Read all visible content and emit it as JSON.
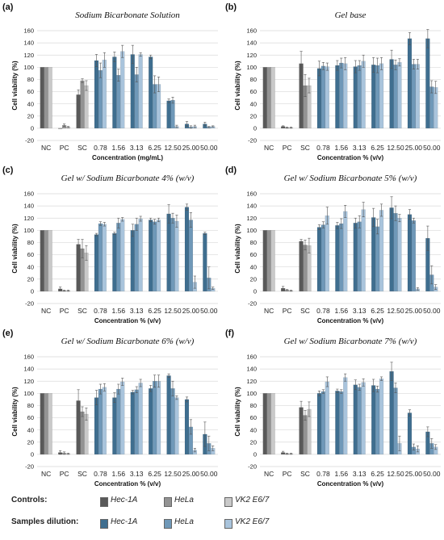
{
  "chart_data": [
    {
      "type": "bar",
      "panel_label": "(a)",
      "title": "Sodium Bicarbonate Solution",
      "xlabel": "Concentration (mg/mL)",
      "ylabel": "Cell viability (%)",
      "ylim": [
        -20,
        160
      ],
      "yticks": [
        -20,
        0,
        20,
        40,
        60,
        80,
        100,
        120,
        140,
        160
      ],
      "grid": true,
      "categories": [
        "NC",
        "PC",
        "SC",
        "0.78",
        "1.56",
        "3.13",
        "6.25",
        "12.50",
        "25.00",
        "50.00"
      ],
      "series": [
        {
          "name": "Hec-1A",
          "values": [
            100,
            0,
            55,
            111,
            117,
            121,
            117,
            45,
            7,
            7
          ],
          "errors": [
            0,
            0,
            8,
            10,
            8,
            15,
            3,
            3,
            4,
            3
          ]
        },
        {
          "name": "HeLa",
          "values": [
            100,
            5,
            78,
            95,
            87,
            88,
            72,
            46,
            2,
            2
          ],
          "errors": [
            0,
            2,
            3,
            12,
            10,
            12,
            14,
            5,
            2,
            1
          ]
        },
        {
          "name": "VK2 E6/7",
          "values": [
            100,
            2,
            70,
            112,
            126,
            121,
            72,
            3,
            3,
            3
          ],
          "errors": [
            0,
            1,
            8,
            12,
            10,
            3,
            12,
            2,
            2,
            1
          ]
        }
      ]
    },
    {
      "type": "bar",
      "panel_label": "(b)",
      "title": "Gel base",
      "xlabel": "Concentration % (v/v)",
      "ylabel": "Cell viability (%)",
      "ylim": [
        -20,
        160
      ],
      "yticks": [
        -20,
        0,
        20,
        40,
        60,
        80,
        100,
        120,
        140,
        160
      ],
      "grid": true,
      "categories": [
        "NC",
        "PC",
        "SC",
        "0.78",
        "1.56",
        "3.13",
        "6.25",
        "12.50",
        "25.00",
        "50.00"
      ],
      "series": [
        {
          "name": "Hec-1A",
          "values": [
            100,
            3,
            106,
            98,
            103,
            101,
            104,
            113,
            147,
            147
          ],
          "errors": [
            0,
            1,
            20,
            12,
            8,
            10,
            12,
            15,
            10,
            15
          ]
        },
        {
          "name": "HeLa",
          "values": [
            100,
            1,
            70,
            102,
            107,
            103,
            103,
            104,
            105,
            68
          ],
          "errors": [
            0,
            1,
            18,
            6,
            8,
            8,
            12,
            8,
            8,
            10
          ]
        },
        {
          "name": "VK2 E6/7",
          "values": [
            100,
            1,
            70,
            101,
            106,
            110,
            106,
            108,
            105,
            67
          ],
          "errors": [
            0,
            1,
            12,
            6,
            10,
            10,
            10,
            6,
            8,
            10
          ]
        }
      ]
    },
    {
      "type": "bar",
      "panel_label": "(c)",
      "title": "Gel w/ Sodium Bicarbonate 4% (w/v)",
      "xlabel": "Concentration % (v/v)",
      "ylabel": "Cell viability (%)",
      "ylim": [
        -20,
        160
      ],
      "yticks": [
        -20,
        0,
        20,
        40,
        60,
        80,
        100,
        120,
        140,
        160
      ],
      "grid": true,
      "categories": [
        "NC",
        "PC",
        "SC",
        "0.78",
        "1.56",
        "3.13",
        "6.25",
        "12.50",
        "25.00",
        "50.00"
      ],
      "series": [
        {
          "name": "Hec-1A",
          "values": [
            100,
            4,
            77,
            93,
            95,
            100,
            117,
            127,
            138,
            95
          ],
          "errors": [
            0,
            3,
            8,
            2,
            2,
            10,
            3,
            15,
            5,
            2
          ]
        },
        {
          "name": "HeLa",
          "values": [
            100,
            1,
            70,
            111,
            112,
            110,
            114,
            120,
            117,
            22
          ],
          "errors": [
            0,
            1,
            15,
            3,
            8,
            10,
            4,
            8,
            12,
            18
          ]
        },
        {
          "name": "VK2 E6/7",
          "values": [
            100,
            1,
            63,
            110,
            118,
            119,
            117,
            115,
            15,
            5
          ],
          "errors": [
            0,
            1,
            12,
            3,
            3,
            4,
            3,
            10,
            10,
            2
          ]
        }
      ]
    },
    {
      "type": "bar",
      "panel_label": "(d)",
      "title": "Gel w/ Sodium Bicarbonate 5% (w/v)",
      "xlabel": "Concentration % (v/v)",
      "ylabel": "Cell viability (%)",
      "ylim": [
        -20,
        160
      ],
      "yticks": [
        -20,
        0,
        20,
        40,
        60,
        80,
        100,
        120,
        140,
        160
      ],
      "grid": true,
      "categories": [
        "NC",
        "PC",
        "SC",
        "0.78",
        "1.56",
        "3.13",
        "6.25",
        "12.50",
        "25.00",
        "50.00"
      ],
      "series": [
        {
          "name": "Hec-1A",
          "values": [
            100,
            5,
            82,
            105,
            108,
            112,
            121,
            137,
            126,
            87
          ],
          "errors": [
            0,
            3,
            3,
            4,
            5,
            8,
            15,
            18,
            8,
            20
          ]
        },
        {
          "name": "HeLa",
          "values": [
            100,
            2,
            76,
            109,
            111,
            114,
            106,
            128,
            116,
            27
          ],
          "errors": [
            0,
            1,
            8,
            5,
            8,
            10,
            12,
            12,
            4,
            15
          ]
        },
        {
          "name": "VK2 E6/7",
          "values": [
            100,
            1,
            75,
            124,
            131,
            134,
            133,
            120,
            4,
            7
          ],
          "errors": [
            0,
            1,
            12,
            14,
            10,
            12,
            10,
            6,
            2,
            4
          ]
        }
      ]
    },
    {
      "type": "bar",
      "panel_label": "(e)",
      "title": "Gel w/ Sodium Bicarbonate 6% (w/v)",
      "xlabel": "Concentration % (v/v)",
      "ylabel": "Cell viability (%)",
      "ylim": [
        -20,
        160
      ],
      "yticks": [
        -20,
        0,
        20,
        40,
        60,
        80,
        100,
        120,
        140,
        160
      ],
      "grid": true,
      "categories": [
        "NC",
        "PC",
        "SC",
        "0.78",
        "1.56",
        "3.13",
        "6.25",
        "12.50",
        "25.00",
        "50.00"
      ],
      "series": [
        {
          "name": "Hec-1A",
          "values": [
            100,
            3,
            88,
            93,
            93,
            102,
            108,
            129,
            90,
            33
          ],
          "errors": [
            0,
            3,
            18,
            12,
            8,
            3,
            5,
            3,
            4,
            20
          ]
        },
        {
          "name": "HeLa",
          "values": [
            100,
            2,
            70,
            107,
            107,
            106,
            120,
            108,
            45,
            18
          ],
          "errors": [
            0,
            2,
            8,
            8,
            8,
            5,
            10,
            12,
            12,
            12
          ]
        },
        {
          "name": "VK2 E6/7",
          "values": [
            100,
            1,
            66,
            110,
            119,
            117,
            120,
            93,
            7,
            10
          ],
          "errors": [
            0,
            1,
            10,
            6,
            6,
            6,
            10,
            3,
            3,
            4
          ]
        }
      ]
    },
    {
      "type": "bar",
      "panel_label": "(f)",
      "title": "Gel w/ Sodium Bicarbonate 7% (w/v)",
      "xlabel": "Concentration % (v/v)",
      "ylabel": "Cell viability (%)",
      "ylim": [
        -20,
        160
      ],
      "yticks": [
        -20,
        0,
        20,
        40,
        60,
        80,
        100,
        120,
        140,
        160
      ],
      "grid": true,
      "categories": [
        "NC",
        "PC",
        "SC",
        "0.78",
        "1.56",
        "3.13",
        "6.25",
        "12.50",
        "25.00",
        "50.00"
      ],
      "series": [
        {
          "name": "Hec-1A",
          "values": [
            100,
            3,
            77,
            100,
            104,
            114,
            113,
            136,
            68,
            37
          ],
          "errors": [
            0,
            2,
            10,
            4,
            3,
            8,
            10,
            15,
            5,
            8
          ]
        },
        {
          "name": "HeLa",
          "values": [
            100,
            1,
            64,
            103,
            103,
            110,
            107,
            109,
            12,
            18
          ],
          "errors": [
            0,
            1,
            8,
            3,
            3,
            5,
            5,
            8,
            5,
            8
          ]
        },
        {
          "name": "VK2 E6/7",
          "values": [
            100,
            1,
            74,
            119,
            126,
            118,
            124,
            18,
            9,
            12
          ],
          "errors": [
            0,
            1,
            12,
            8,
            6,
            6,
            3,
            12,
            5,
            4
          ]
        }
      ]
    }
  ],
  "legend": {
    "controls": {
      "label": "Controls:",
      "items": [
        {
          "name": "Hec-1A",
          "color": "#595959"
        },
        {
          "name": "HeLa",
          "color": "#939393"
        },
        {
          "name": "VK2 E6/7",
          "color": "#c9c9c9"
        }
      ]
    },
    "samples": {
      "label": "Samples dilution:",
      "items": [
        {
          "name": "Hec-1A",
          "color": "#3f6e8f"
        },
        {
          "name": "HeLa",
          "color": "#6f98b8"
        },
        {
          "name": "VK2 E6/7",
          "color": "#a9c4dc"
        }
      ]
    }
  }
}
